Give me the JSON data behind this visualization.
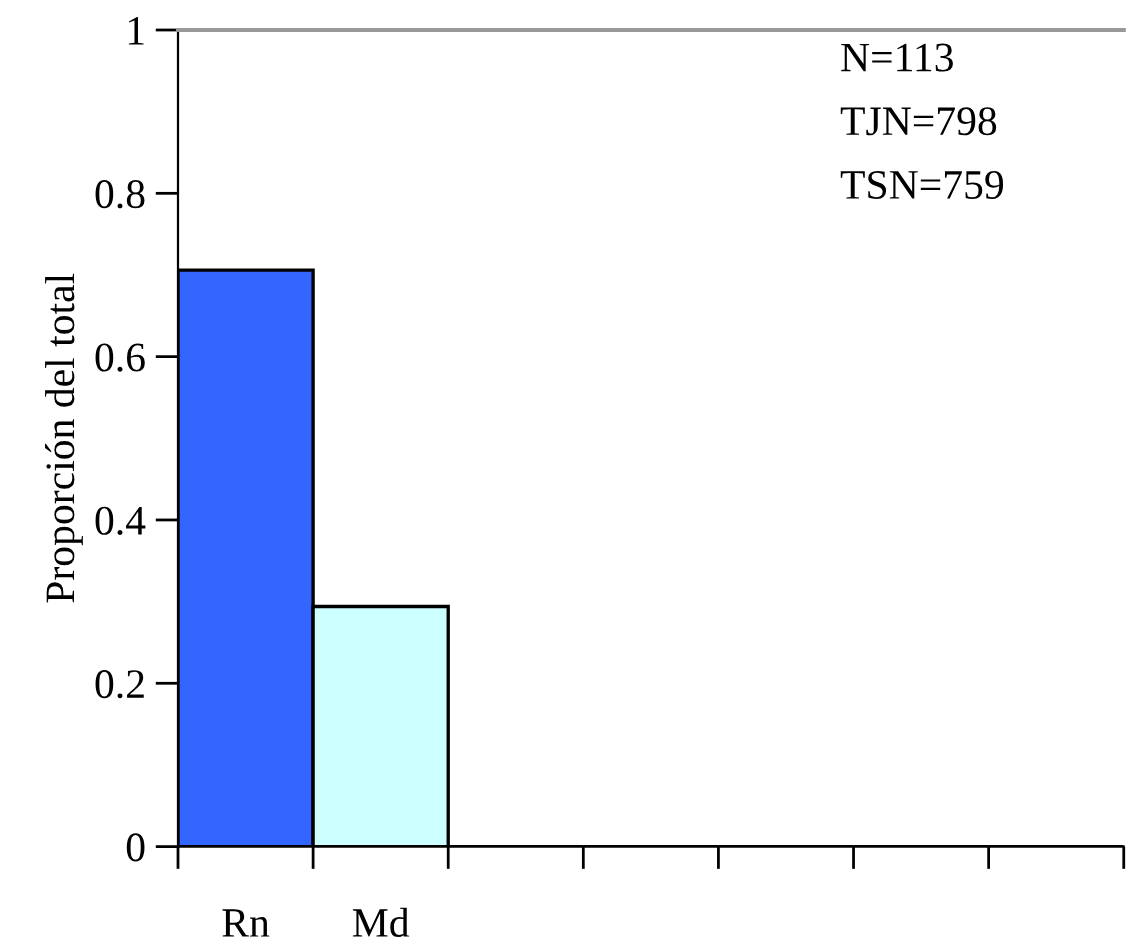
{
  "chart_data": {
    "type": "bar",
    "ylabel": "Proporción del total",
    "categories": [
      "Rn",
      "Md",
      null,
      null,
      null,
      null,
      null
    ],
    "values": [
      0.706,
      0.294,
      0,
      0,
      0,
      0,
      0
    ],
    "colors": [
      "#3366ff",
      "#ccffff",
      "#ffffff",
      "#ffffff",
      "#ffffff",
      "#ffffff",
      "#ffffff"
    ],
    "ylim": [
      0,
      1
    ],
    "yticks": [
      0,
      0.2,
      0.4,
      0.6,
      0.8,
      1
    ],
    "annotations": [
      "N=113",
      "TJN=798",
      "TSN=759"
    ]
  }
}
